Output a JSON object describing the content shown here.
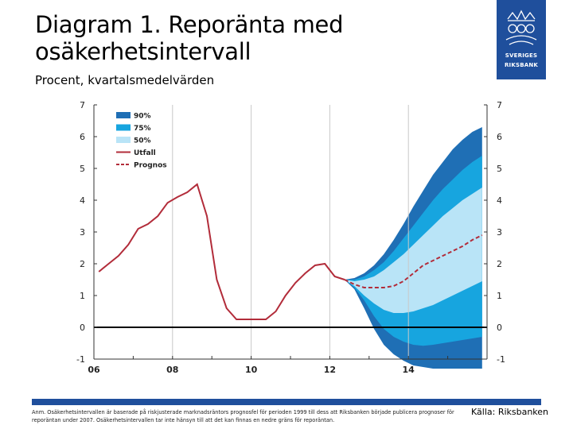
{
  "title": "Diagram 1. Reporänta med osäkerhetsintervall",
  "subtitle": "Procent, kvartalsmedelvärden",
  "logo": {
    "name": "SVERIGES RIKSBANK",
    "line1": "SVERIGES",
    "line2": "RIKSBANK"
  },
  "note": "Anm. Osäkerhetsintervallen är baserade på riskjusterade marknadsräntors prognosfel för perioden 1999 till dess att Riksbanken började publicera prognoser för reporäntan under 2007. Osäkerhetsintervallen tar inte hänsyn till att det kan finnas en nedre gräns för reporäntan.",
  "source": "Källa: Riksbanken",
  "colors": {
    "band90": "#1f6fb5",
    "band75": "#17a5df",
    "band50": "#b9e4f7",
    "outcome": "#b22c3a",
    "forecast": "#b22c3a",
    "brand": "#1f4f9c"
  },
  "chart_data": {
    "type": "line",
    "title": "Diagram 1. Reporänta med osäkerhetsintervall",
    "ylabel": "Procent, kvartalsmedelvärden",
    "xlabel": "",
    "ylim": [
      -1,
      7
    ],
    "xlim": [
      2006,
      2016
    ],
    "yticks": [
      -1,
      0,
      1,
      2,
      3,
      4,
      5,
      6,
      7
    ],
    "yticklabels": [
      "-1",
      "0",
      "1",
      "2",
      "3",
      "4",
      "5",
      "6",
      "7"
    ],
    "xticks": [
      2006,
      2008,
      2010,
      2012,
      2014
    ],
    "xticklabels": [
      "06",
      "08",
      "10",
      "12",
      "14"
    ],
    "vlines": [
      2008,
      2010,
      2012,
      2014
    ],
    "legend": [
      "90%",
      "75%",
      "50%",
      "Utfall",
      "Prognos"
    ],
    "legend_position": "top-left",
    "series": [
      {
        "name": "Utfall",
        "style": "solid",
        "x": [
          2006.125,
          2006.375,
          2006.625,
          2006.875,
          2007.125,
          2007.375,
          2007.625,
          2007.875,
          2008.125,
          2008.375,
          2008.625,
          2008.875,
          2009.125,
          2009.375,
          2009.625,
          2009.875,
          2010.125,
          2010.375,
          2010.625,
          2010.875,
          2011.125,
          2011.375,
          2011.625,
          2011.875,
          2012.125,
          2012.375
        ],
        "values": [
          1.75,
          2.0,
          2.25,
          2.6,
          3.1,
          3.25,
          3.5,
          3.92,
          4.1,
          4.25,
          4.5,
          3.5,
          1.5,
          0.6,
          0.25,
          0.25,
          0.25,
          0.25,
          0.5,
          1.0,
          1.4,
          1.7,
          1.95,
          2.0,
          1.6,
          1.5
        ]
      },
      {
        "name": "Prognos",
        "style": "dashed",
        "x": [
          2012.375,
          2012.625,
          2012.875,
          2013.125,
          2013.375,
          2013.625,
          2013.875,
          2014.125,
          2014.375,
          2014.625,
          2014.875,
          2015.125,
          2015.375,
          2015.625,
          2015.875
        ],
        "values": [
          1.5,
          1.35,
          1.25,
          1.25,
          1.25,
          1.3,
          1.45,
          1.7,
          1.95,
          2.1,
          2.25,
          2.4,
          2.55,
          2.75,
          2.9
        ]
      }
    ],
    "bands": {
      "x": [
        2012.375,
        2012.625,
        2012.875,
        2013.125,
        2013.375,
        2013.625,
        2013.875,
        2014.125,
        2014.375,
        2014.625,
        2014.875,
        2015.125,
        2015.375,
        2015.625,
        2015.875
      ],
      "p90": {
        "lower": [
          1.5,
          1.2,
          0.6,
          -0.05,
          -0.55,
          -0.85,
          -1.05,
          -1.2,
          -1.25,
          -1.3,
          -1.3,
          -1.3,
          -1.3,
          -1.3,
          -1.3
        ],
        "upper": [
          1.5,
          1.55,
          1.7,
          1.95,
          2.3,
          2.75,
          3.25,
          3.8,
          4.3,
          4.8,
          5.2,
          5.6,
          5.9,
          6.15,
          6.3
        ]
      },
      "p75": {
        "lower": [
          1.5,
          1.25,
          0.85,
          0.35,
          -0.05,
          -0.3,
          -0.45,
          -0.55,
          -0.58,
          -0.55,
          -0.5,
          -0.45,
          -0.4,
          -0.35,
          -0.3
        ],
        "upper": [
          1.5,
          1.5,
          1.6,
          1.8,
          2.05,
          2.4,
          2.8,
          3.2,
          3.6,
          4.0,
          4.35,
          4.65,
          4.95,
          5.2,
          5.4
        ]
      },
      "p50": {
        "lower": [
          1.5,
          1.3,
          1.0,
          0.75,
          0.55,
          0.45,
          0.45,
          0.5,
          0.6,
          0.7,
          0.85,
          1.0,
          1.15,
          1.3,
          1.45
        ],
        "upper": [
          1.5,
          1.45,
          1.5,
          1.6,
          1.8,
          2.05,
          2.3,
          2.6,
          2.9,
          3.2,
          3.5,
          3.75,
          4.0,
          4.2,
          4.4
        ]
      }
    }
  }
}
